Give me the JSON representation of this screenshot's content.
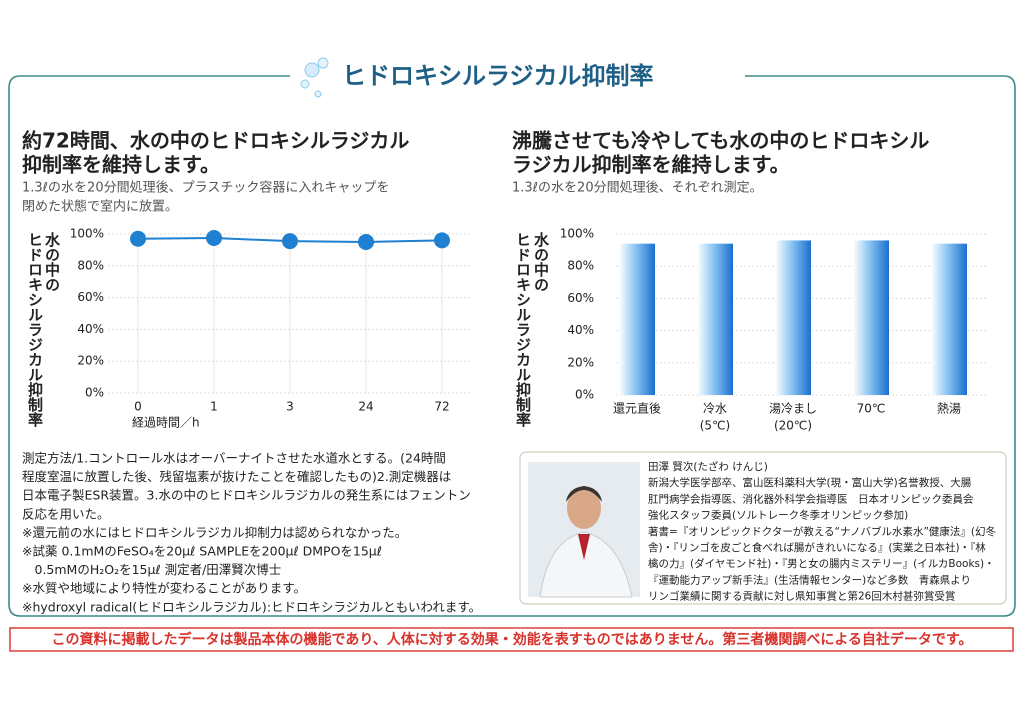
{
  "header": {
    "title": "ヒドロキシルラジカル抑制率"
  },
  "chart_data": [
    {
      "type": "line",
      "heading": [
        "約72時間、水の中のヒドロキシルラジカル",
        "抑制率を維持します。"
      ],
      "subtitle": [
        "1.3ℓの水を20分間処理後、プラスチック容器に入れキャップを",
        "閉めた状態で室内に放置。"
      ],
      "y_label": [
        "水の中の",
        "ヒドロキシルラジカル抑制率"
      ],
      "x_label": "経過時間／h",
      "categories": [
        "0",
        "1",
        "3",
        "24",
        "72"
      ],
      "values": [
        97,
        97.5,
        95.5,
        95,
        96
      ],
      "color": "#1f7fd0",
      "ylim": [
        0,
        100
      ],
      "yticks": [
        {
          "value": 0,
          "label": "0%"
        },
        {
          "value": 20,
          "label": "20%"
        },
        {
          "value": 40,
          "label": "40%"
        },
        {
          "value": 60,
          "label": "60%"
        },
        {
          "value": 80,
          "label": "80%"
        },
        {
          "value": 100,
          "label": "100%"
        }
      ],
      "grid": true
    },
    {
      "type": "bar",
      "heading": [
        "沸騰させても冷やしても水の中のヒドロキシル",
        "ラジカル抑制率を維持します。"
      ],
      "subtitle": [
        "1.3ℓの水を20分間処理後、それぞれ測定。"
      ],
      "y_label": [
        "水の中の",
        "ヒドロキシルラジカル抑制率"
      ],
      "categories": [
        [
          "還元直後"
        ],
        [
          "冷水",
          "(5℃)"
        ],
        [
          "湯冷まし",
          "(20℃)"
        ],
        [
          "70℃"
        ],
        [
          "熱湯"
        ]
      ],
      "values": [
        94,
        94,
        96,
        96,
        94
      ],
      "color": "#1a6fcf",
      "ylim": [
        0,
        100
      ],
      "yticks": [
        {
          "value": 0,
          "label": "0%"
        },
        {
          "value": 20,
          "label": "20%"
        },
        {
          "value": 40,
          "label": "40%"
        },
        {
          "value": 60,
          "label": "60%"
        },
        {
          "value": 80,
          "label": "80%"
        },
        {
          "value": 100,
          "label": "100%"
        }
      ],
      "grid": true
    }
  ],
  "notes": [
    "測定方法/1.コントロール水はオーバーナイトさせた水道水とする。(24時間",
    "程度室温に放置した後、残留塩素が抜けたことを確認したもの)2.測定機器は",
    "日本電子製ESR装置。3.水の中のヒドロキシルラジカルの発生系にはフェントン",
    "反応を用いた。",
    "※還元前の水にはヒドロキシルラジカル抑制力は認められなかった。",
    "※試薬 0.1mMのFeSO₄を20μℓ SAMPLEを200μℓ DMPOを15μℓ",
    "　0.5mMのH₂O₂を15μℓ 測定者/田澤賢次博士",
    "※水質や地域により特性が変わることがあります。",
    "※hydroxyl radical(ヒドロキシルラジカル):ヒドロキシラジカルともいわれます。"
  ],
  "profile": {
    "lines": [
      "田澤 賢次(たざわ けんじ)",
      "新潟大学医学部卒、富山医科薬科大学(現・富山大学)名誉教授、大腸",
      "肛門病学会指導医、消化器外科学会指導医　日本オリンピック委員会",
      "強化スタッフ委員(ソルトレーク冬季オリンピック参加)",
      "著書=『オリンピックドクターが教える“ナノバブル水素水”健康法』(幻冬",
      "舎)・『リンゴを皮ごと食べれば腸がきれいになる』(実業之日本社)・『林",
      "檎の力』(ダイヤモンド社)・『男と女の腸内ミステリー』(イルカBooks)・",
      "『運動能力アップ新手法』(生活情報センター)など多数　青森県より",
      "リンゴ業績に関する貢献に対し県知事賞と第26回木村甚弥賞受賞"
    ]
  },
  "disclaimer": "この資料に掲載したデータは製品本体の機能であり、人体に対する効果・効能を表すものではありません。第三者機関調べによる自社データです。"
}
